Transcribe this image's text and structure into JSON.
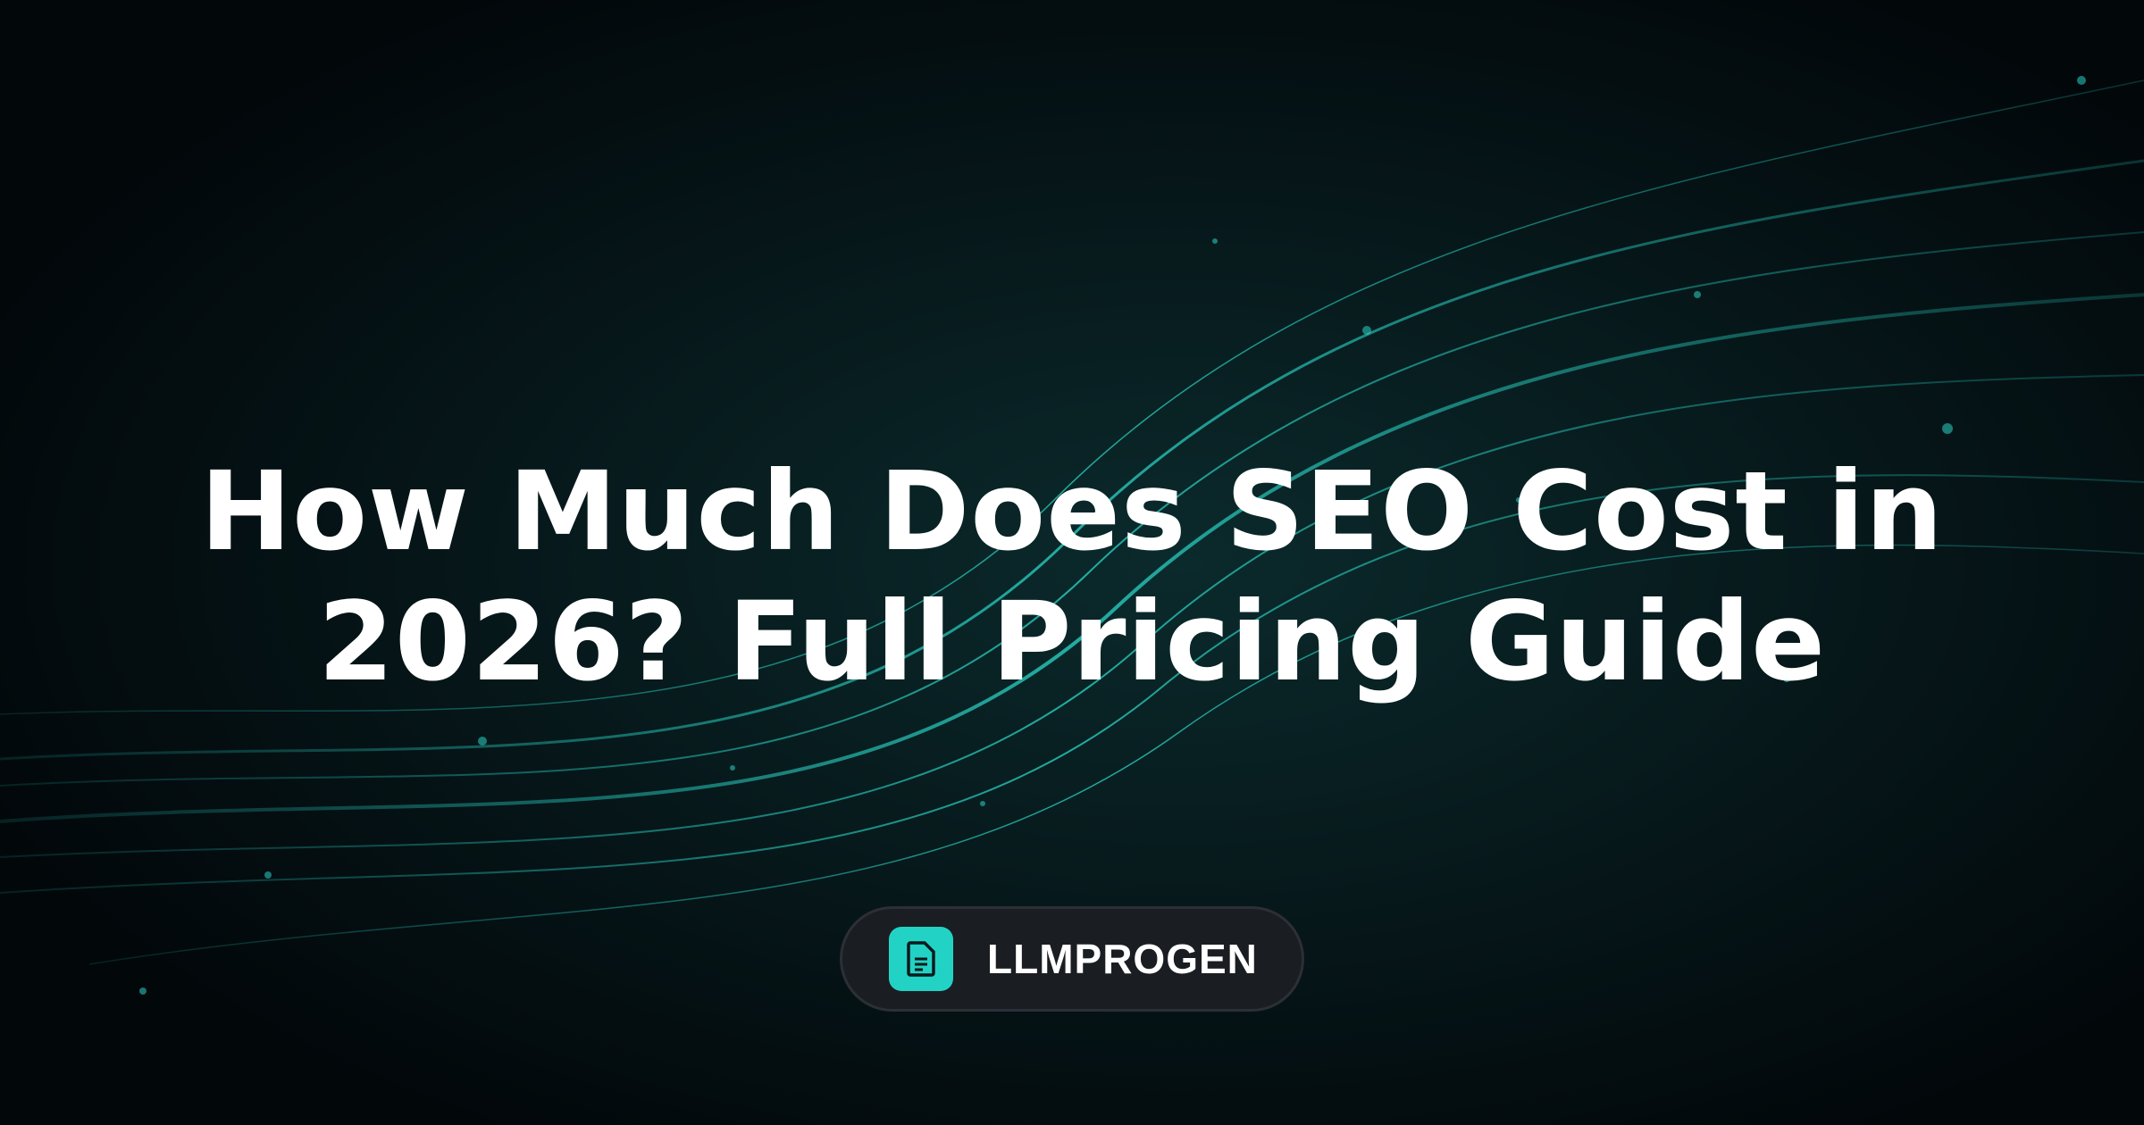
{
  "header": {
    "title_lines": [
      "How Much Does SEO Cost in",
      "2026? Full Pricing Guide"
    ]
  },
  "brand": {
    "name": "LLMPROGEN"
  }
}
